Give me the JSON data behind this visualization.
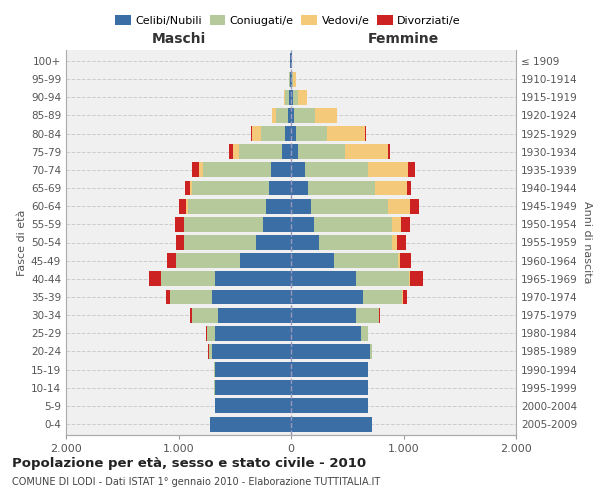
{
  "age_groups": [
    "0-4",
    "5-9",
    "10-14",
    "15-19",
    "20-24",
    "25-29",
    "30-34",
    "35-39",
    "40-44",
    "45-49",
    "50-54",
    "55-59",
    "60-64",
    "65-69",
    "70-74",
    "75-79",
    "80-84",
    "85-89",
    "90-94",
    "95-99",
    "100+"
  ],
  "birth_years": [
    "2005-2009",
    "2000-2004",
    "1995-1999",
    "1990-1994",
    "1985-1989",
    "1980-1984",
    "1975-1979",
    "1970-1974",
    "1965-1969",
    "1960-1964",
    "1955-1959",
    "1950-1954",
    "1945-1949",
    "1940-1944",
    "1935-1939",
    "1930-1934",
    "1925-1929",
    "1920-1924",
    "1915-1919",
    "1910-1914",
    "≤ 1909"
  ],
  "males": {
    "celibi": [
      720,
      680,
      680,
      680,
      700,
      680,
      650,
      700,
      680,
      450,
      310,
      250,
      220,
      200,
      180,
      80,
      50,
      30,
      20,
      10,
      5
    ],
    "coniugati": [
      0,
      0,
      3,
      8,
      30,
      70,
      230,
      380,
      480,
      570,
      640,
      700,
      700,
      680,
      600,
      380,
      220,
      100,
      30,
      8,
      2
    ],
    "vedovi": [
      0,
      0,
      0,
      0,
      0,
      0,
      0,
      0,
      0,
      2,
      3,
      5,
      10,
      20,
      40,
      60,
      80,
      40,
      10,
      2,
      0
    ],
    "divorziati": [
      0,
      0,
      0,
      0,
      5,
      5,
      20,
      30,
      100,
      80,
      70,
      80,
      70,
      40,
      60,
      30,
      5,
      2,
      0,
      0,
      0
    ]
  },
  "females": {
    "nubili": [
      720,
      680,
      680,
      680,
      700,
      620,
      580,
      640,
      580,
      380,
      250,
      200,
      180,
      150,
      120,
      60,
      40,
      30,
      20,
      10,
      5
    ],
    "coniugate": [
      0,
      0,
      0,
      5,
      20,
      60,
      200,
      350,
      470,
      570,
      650,
      700,
      680,
      600,
      560,
      420,
      280,
      180,
      40,
      10,
      2
    ],
    "vedove": [
      0,
      0,
      0,
      0,
      0,
      0,
      0,
      3,
      5,
      20,
      40,
      80,
      200,
      280,
      360,
      380,
      340,
      200,
      80,
      20,
      2
    ],
    "divorziate": [
      0,
      0,
      0,
      0,
      3,
      5,
      10,
      40,
      120,
      100,
      80,
      80,
      80,
      40,
      60,
      20,
      5,
      2,
      0,
      0,
      0
    ]
  },
  "colors": {
    "celibi_nubili": "#3a6ea5",
    "coniugati": "#b5c99a",
    "vedovi": "#f5c97a",
    "divorziati": "#cc2222"
  },
  "xlim": 2000,
  "title": "Popolazione per età, sesso e stato civile - 2010",
  "subtitle": "COMUNE DI LODI - Dati ISTAT 1° gennaio 2010 - Elaborazione TUTTITALIA.IT",
  "ylabel_left": "Fasce di età",
  "ylabel_right": "Anni di nascita",
  "xlabel_left": "Maschi",
  "xlabel_right": "Femmine",
  "bg_color": "#ffffff",
  "grid_color": "#cccccc",
  "ax_bg_color": "#f0f0f0"
}
